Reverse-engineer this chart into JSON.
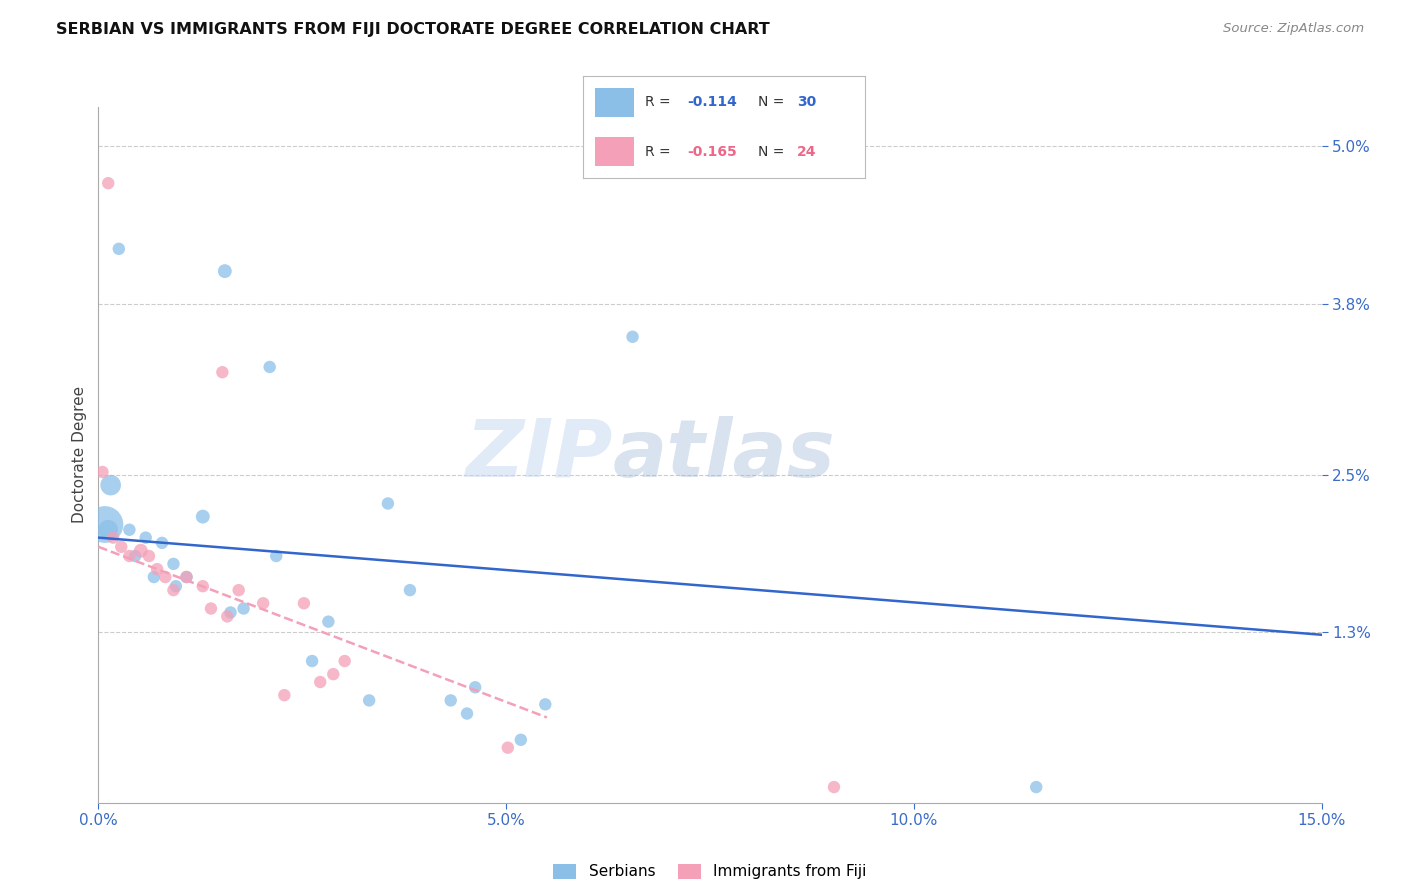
{
  "title": "SERBIAN VS IMMIGRANTS FROM FIJI DOCTORATE DEGREE CORRELATION CHART",
  "source": "Source: ZipAtlas.com",
  "ylabel": "Doctorate Degree",
  "xlabel_ticks": [
    "0.0%",
    "5.0%",
    "10.0%",
    "15.0%"
  ],
  "xlabel_vals": [
    0.0,
    5.0,
    10.0,
    15.0
  ],
  "ylabel_ticks": [
    "1.3%",
    "2.5%",
    "3.8%",
    "5.0%"
  ],
  "ylabel_vals": [
    1.3,
    2.5,
    3.8,
    5.0
  ],
  "xmin": 0.0,
  "xmax": 15.0,
  "ymin": 0.0,
  "ymax": 5.3,
  "blue_color": "#8BBFE8",
  "pink_color": "#F4A0B8",
  "line_blue": "#3366CC",
  "line_pink": "#EE6688",
  "watermark_zip": "ZIP",
  "watermark_atlas": "atlas",
  "serbians_x": [
    0.15,
    0.25,
    1.55,
    2.1,
    3.55,
    6.55,
    0.08,
    0.12,
    0.45,
    0.68,
    0.95,
    1.28,
    1.78,
    2.82,
    3.82,
    4.52,
    5.48,
    11.5,
    0.38,
    0.92,
    1.62,
    2.62,
    3.32,
    4.32,
    4.62,
    5.18,
    0.58,
    0.78,
    1.08,
    2.18
  ],
  "serbians_y": [
    2.42,
    4.22,
    4.05,
    3.32,
    2.28,
    3.55,
    2.12,
    2.08,
    1.88,
    1.72,
    1.65,
    2.18,
    1.48,
    1.38,
    1.62,
    0.68,
    0.75,
    0.12,
    2.08,
    1.82,
    1.45,
    1.08,
    0.78,
    0.78,
    0.88,
    0.48,
    2.02,
    1.98,
    1.72,
    1.88
  ],
  "serbians_size": [
    220,
    80,
    100,
    80,
    80,
    80,
    700,
    200,
    80,
    80,
    80,
    100,
    80,
    80,
    80,
    80,
    80,
    80,
    80,
    80,
    80,
    80,
    80,
    80,
    80,
    80,
    80,
    80,
    80,
    80
  ],
  "fiji_x": [
    0.12,
    1.52,
    0.05,
    0.52,
    0.62,
    0.72,
    0.82,
    0.92,
    1.08,
    1.28,
    1.72,
    2.02,
    2.52,
    2.88,
    3.02,
    0.38,
    0.28,
    0.18,
    1.38,
    1.58,
    2.28,
    2.72,
    5.02,
    9.02
  ],
  "fiji_y": [
    4.72,
    3.28,
    2.52,
    1.92,
    1.88,
    1.78,
    1.72,
    1.62,
    1.72,
    1.65,
    1.62,
    1.52,
    1.52,
    0.98,
    1.08,
    1.88,
    1.95,
    2.02,
    1.48,
    1.42,
    0.82,
    0.92,
    0.42,
    0.12
  ],
  "fiji_size": [
    80,
    80,
    80,
    100,
    80,
    80,
    80,
    80,
    80,
    80,
    80,
    80,
    80,
    80,
    80,
    80,
    80,
    80,
    80,
    80,
    80,
    80,
    80,
    80
  ],
  "blue_line_x": [
    0.0,
    15.0
  ],
  "blue_line_y": [
    2.02,
    1.28
  ],
  "pink_line_x": [
    0.0,
    5.5
  ],
  "pink_line_y": [
    1.95,
    0.65
  ]
}
